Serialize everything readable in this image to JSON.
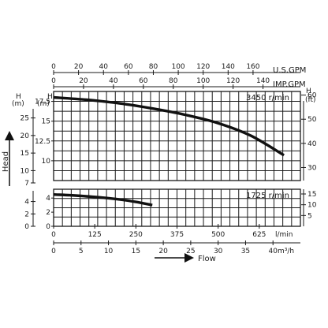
{
  "chart_data": {
    "type": "line",
    "title": "",
    "y_axis_label": "Head",
    "x_axis_label": "Flow",
    "top_axes": [
      {
        "unit": "U.S.GPM",
        "ticks": [
          0,
          20,
          40,
          60,
          80,
          100,
          120,
          140,
          160
        ],
        "range": [
          0,
          198
        ]
      },
      {
        "unit": "IMP.GPM",
        "ticks": [
          0,
          20,
          40,
          60,
          80,
          100,
          120,
          140
        ],
        "range": [
          0,
          165
        ]
      }
    ],
    "bottom_axes": [
      {
        "unit": "l/min",
        "ticks": [
          0,
          125,
          250,
          375,
          500,
          625
        ],
        "range": [
          0,
          750
        ]
      },
      {
        "unit": "m³/h",
        "ticks": [
          0,
          5,
          10,
          15,
          20,
          25,
          30,
          35,
          40
        ],
        "range": [
          0,
          45
        ]
      }
    ],
    "panels": [
      {
        "name": "3450 r/min",
        "left_axis": {
          "unit_top": "H",
          "unit_bottom": "(m)",
          "ticks": [
            10,
            12.5,
            15,
            17.5
          ],
          "range": [
            7.5,
            18.75
          ]
        },
        "left_outer_axis": {
          "unit_top": "H",
          "unit_bottom": "(m)",
          "ticks": [
            10,
            15,
            20,
            25
          ],
          "range": [
            6.5,
            28.5
          ]
        },
        "right_axis": {
          "unit_top": "H",
          "unit_bottom": "(ft)",
          "ticks": [
            30,
            40,
            50,
            60
          ],
          "range": [
            24.6,
            61.5
          ]
        },
        "x_unit": "l/min",
        "x": [
          0,
          100,
          200,
          300,
          400,
          500,
          600,
          700
        ],
        "y": [
          18.0,
          17.7,
          17.25,
          16.6,
          15.8,
          14.75,
          13.15,
          10.7
        ]
      },
      {
        "name": "1725 r/min",
        "left_axis": {
          "unit_top": "",
          "unit_bottom": "",
          "ticks": [
            0,
            2,
            4
          ],
          "range": [
            0,
            5.25
          ]
        },
        "left_outer_axis": {
          "unit_top": "",
          "unit_bottom": "",
          "ticks": [
            0,
            2,
            4,
            7
          ],
          "range": [
            0,
            7
          ]
        },
        "right_axis": {
          "unit_top": "",
          "unit_bottom": "",
          "ticks": [
            5,
            10,
            15
          ],
          "range": [
            0,
            17.2
          ]
        },
        "x_unit": "l/min",
        "x": [
          0,
          50,
          100,
          150,
          200,
          250,
          300
        ],
        "y": [
          4.5,
          4.4,
          4.25,
          4.05,
          3.8,
          3.45,
          3.0
        ]
      }
    ]
  }
}
